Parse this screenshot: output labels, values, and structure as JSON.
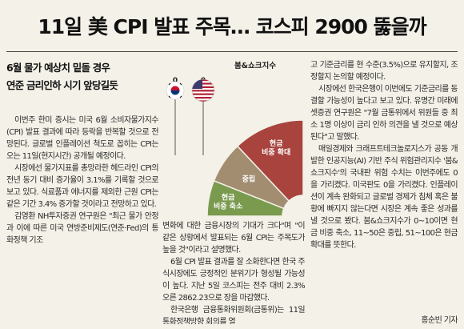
{
  "headline": "11일 美 CPI 발표 주목… 코스피 2900 뚫을까",
  "subheads": [
    "6월 물가 예상치 밑돌 경우",
    "연준 금리인하 시기 앞당길듯"
  ],
  "graphic": {
    "title": "붐&쇼크지수",
    "left_flag_value": "0",
    "right_flag_value": "0",
    "segments": [
      {
        "label": [
          "현금",
          "비중 축소"
        ],
        "range": [
          0,
          10
        ],
        "color": "#7a9a4e"
      },
      {
        "label": [
          "중립"
        ],
        "range": [
          11,
          50
        ],
        "color": "#a28d71"
      },
      {
        "label": [
          "현금",
          "비중 확대"
        ],
        "range": [
          51,
          100
        ],
        "color": "#a8433e"
      }
    ],
    "flags": [
      "south-korea-flag",
      "us-flag"
    ]
  },
  "col1": [
    "이번주 한미 증시는 미국 6월 소비자물가지수(CPI) 발표 결과에 따라 등락을 반복할 것으로 전망된다. 글로벌 인플레이션 척도로 꼽히는 CPI는 오는 11일(현지시간) 공개될 예정이다.",
    "시장에선 물가지표를 총망라한 헤드라인 CPI의 전년 동기 대비 증가율이 3.1%를 기록할 것으로 보고 있다. 식료품과 에너지를 제외한 근원 CPI는 같은 기간 3.4% 증가할 것이라고 전망하고 있다.",
    "김영환 NH투자증권 연구원은 \"최근 물가 안정과 이에 따른 미국 연방준비제도(연준·Fed)의 통화정책 기조"
  ],
  "col2": [
    "변화에 대한 금융시장의 기대가 크다\"며 \"이 같은 상황에서 발표되는 6월 CPI는 주목도가 높을 것\"이라고 설명했다.",
    "6월 CPI 발표 결과를 잘 소화한다면 한국 주식시장에도 긍정적인 분위기가 형성될 가능성이 높다. 지난 5일 코스피는 전주 대비 2.3% 오른 2862.23으로 장을 마감했다.",
    "한국은행 금융통화위원회(금통위)는 11일 통화정책방향 회의를 열"
  ],
  "col3": [
    "고 기준금리를 현 수준(3.5%)으로 유지할지, 조정할지 논의할 예정이다.",
    "시장에선 한국은행이 이번에도 기준금리를 동결할 가능성이 높다고 보고 있다. 유명간 미래에셋증권 연구원은 \"7월 금통위에서 위원들 중 최소 1명 이상이 금리 인하 의견을 낼 것으로 예상된다\"고 말했다.",
    "매일경제와 크래프트테크놀로지스가 공동 개발한 인공지능(AI) 기반 주식 위험관리지수 '붐&쇼크지수'의 국내판 위험 수치는 이번주에도 0을 가리켰다. 미국판도 0을 가리켰다. 인플레이션이 계속 완화되고 글로벌 경제가 침체 혹은 불황에 빠지지 않는다면 시장은 계속 좋은 성과를 낼 것으로 봤다. 붐&쇼크지수가 0~10이면 현금 비중 축소, 11~50은 중립, 51~100은 현금 확대를 뜻한다."
  ],
  "byline": "홍순빈 기자"
}
